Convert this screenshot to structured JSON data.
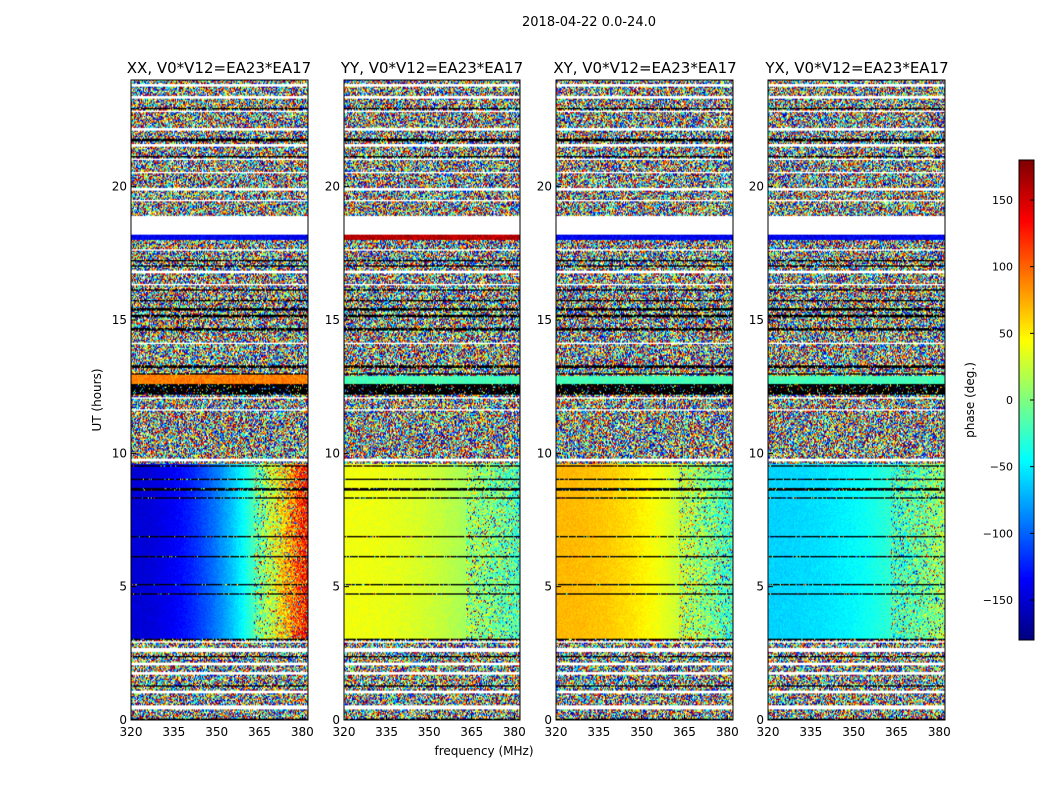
{
  "figure": {
    "suptitle": "2018-04-22 0.0-24.0",
    "xlabel": "frequency (MHz)",
    "ylabel": "UT (hours)"
  },
  "chart_data": {
    "type": "heatmap",
    "x_range_mhz": [
      320,
      382
    ],
    "y_range_hours": [
      0,
      24
    ],
    "x_ticks": [
      320,
      335,
      350,
      365,
      380
    ],
    "y_ticks": [
      0,
      5,
      10,
      15,
      20
    ],
    "panels": [
      {
        "title": "XX, V0*V12=EA23*EA17",
        "polarization": "XX"
      },
      {
        "title": "YY, V0*V12=EA23*EA17",
        "polarization": "YY"
      },
      {
        "title": "XY, V0*V12=EA23*EA17",
        "polarization": "XY"
      },
      {
        "title": "YX, V0*V12=EA23*EA17",
        "polarization": "YX"
      }
    ],
    "noise_description": "Random phase noise outside calibrator scans",
    "blocks": [
      {
        "panel": "XX",
        "t0": 3.0,
        "t1": 9.6,
        "phase_low_freq": -150,
        "phase_high_freq": 140
      },
      {
        "panel": "YY",
        "t0": 3.0,
        "t1": 9.6,
        "phase_low_freq": 40,
        "phase_high_freq": -20
      },
      {
        "panel": "XY",
        "t0": 3.0,
        "t1": 9.6,
        "phase_low_freq": 70,
        "phase_high_freq": -30
      },
      {
        "panel": "YX",
        "t0": 3.0,
        "t1": 9.6,
        "phase_low_freq": -60,
        "phase_high_freq": 10
      }
    ],
    "colorbar": {
      "label": "phase (deg.)",
      "range": [
        -180,
        180
      ],
      "ticks": [
        150,
        100,
        50,
        0,
        -50,
        -100,
        -150
      ],
      "tick_labels": [
        "150",
        "100",
        "50",
        "0",
        "−50",
        "−100",
        "−150"
      ],
      "colormap": "jet"
    }
  }
}
